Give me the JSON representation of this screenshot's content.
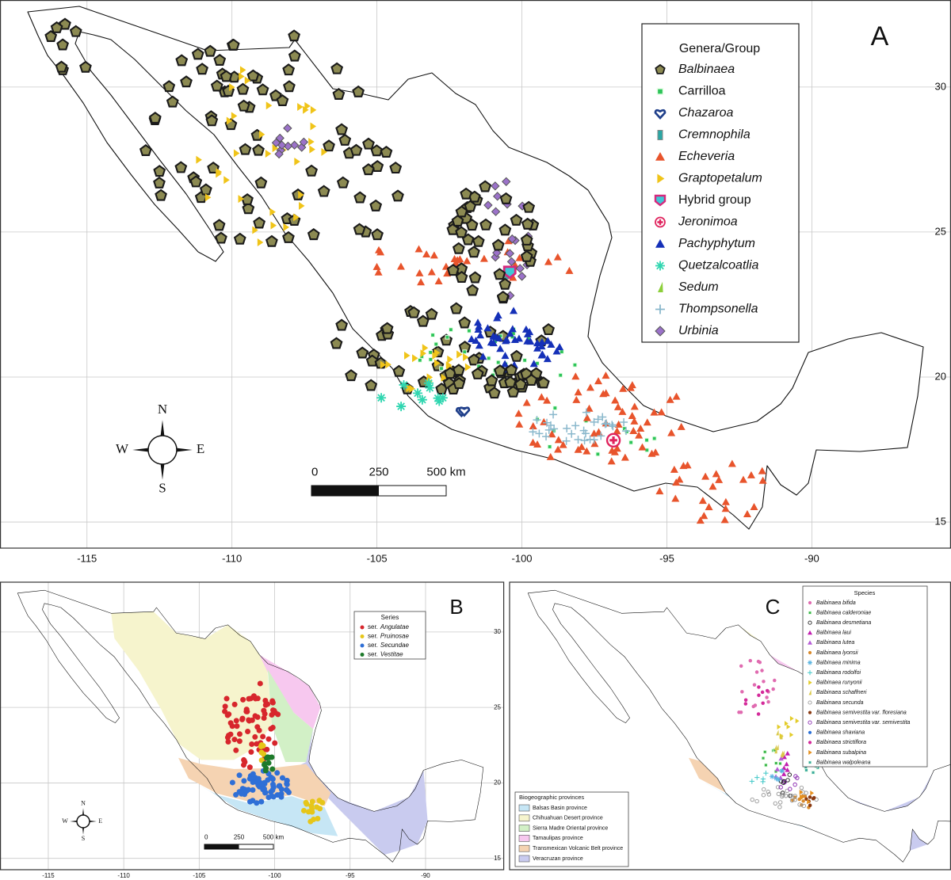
{
  "panels": [
    {
      "label": "A",
      "xlim": [
        -118,
        -85.2
      ],
      "ylim": [
        14.1,
        33.0
      ],
      "xticks": [
        -115,
        -110,
        -105,
        -100,
        -95,
        -90
      ],
      "yticks": [
        15,
        20,
        25,
        30
      ],
      "compass": {
        "n": "N",
        "e": "E",
        "s": "S",
        "w": "W"
      },
      "scale_bar": [
        "0",
        "250",
        "500 km"
      ],
      "legend": {
        "title": "Genera/Group",
        "entries": [
          {
            "name": "Balbinaea",
            "italic": true,
            "color": "#8c8a52",
            "marker": "pentagon"
          },
          {
            "name": "Carrilloa",
            "italic": false,
            "color": "#2ec45a",
            "marker": "square"
          },
          {
            "name": "Chazaroa",
            "italic": true,
            "color": "#1f3f8a",
            "marker": "heart"
          },
          {
            "name": "Cremnophila",
            "italic": true,
            "color": "#2aa7a5",
            "marker": "rect"
          },
          {
            "name": "Echeveria",
            "italic": true,
            "color": "#e8542c",
            "marker": "triangle"
          },
          {
            "name": "Graptopetalum",
            "italic": true,
            "color": "#f0c419",
            "marker": "flag"
          },
          {
            "name": "Hybrid group",
            "italic": false,
            "color": "#d6297d",
            "marker": "shield"
          },
          {
            "name": "Jeronimoa",
            "italic": true,
            "color": "#e0245e",
            "marker": "cross"
          },
          {
            "name": "Pachyphytum",
            "italic": true,
            "color": "#1530b8",
            "marker": "triangle"
          },
          {
            "name": "Quetzalcoatlia",
            "italic": true,
            "color": "#2fd6b0",
            "marker": "asterisk"
          },
          {
            "name": "Sedum",
            "italic": true,
            "color": "#8ccf3a",
            "marker": "sliver"
          },
          {
            "name": "Thompsonella",
            "italic": true,
            "color": "#8ab8cc",
            "marker": "plus"
          },
          {
            "name": "Urbinia",
            "italic": true,
            "color": "#9b72c9",
            "marker": "diamond"
          }
        ]
      }
    },
    {
      "label": "B",
      "xlim": [
        -118.2,
        -84.8
      ],
      "ylim": [
        14.25,
        33.3
      ],
      "xticks": [
        -115,
        -110,
        -105,
        -100,
        -95,
        -90
      ],
      "yticks": [
        15,
        20,
        25,
        30
      ],
      "compass": {
        "n": "N",
        "e": "E",
        "s": "S",
        "w": "W"
      },
      "scale_bar": [
        "0",
        "250",
        "500 km"
      ],
      "legend": {
        "title": "Series",
        "entries": [
          {
            "prefix": "ser.",
            "name": "Angulatae",
            "color": "#d7262c"
          },
          {
            "prefix": "ser.",
            "name": "Pruinosae",
            "color": "#e6c619"
          },
          {
            "prefix": "ser.",
            "name": "Secundae",
            "color": "#2f6fd6"
          },
          {
            "prefix": "ser.",
            "name": "Vestitae",
            "color": "#1d7a2a"
          }
        ]
      }
    },
    {
      "label": "C",
      "species_legend": {
        "title": "Species",
        "entries": [
          {
            "name": "Balbinaea bifida",
            "color": "#e06bb0",
            "marker": "dot"
          },
          {
            "name": "Balbinaea calderoniae",
            "color": "#3bb54a",
            "marker": "square"
          },
          {
            "name": "Balbinaea desmetiana",
            "color": "#222222",
            "marker": "ring"
          },
          {
            "name": "Balbinaea laui",
            "color": "#c21fb0",
            "marker": "triangle"
          },
          {
            "name": "Balbinaea lutea",
            "color": "#b65bd6",
            "marker": "triangle"
          },
          {
            "name": "Balbinaea lyonsii",
            "color": "#d98a2b",
            "marker": "dot"
          },
          {
            "name": "Balbinaea minima",
            "color": "#5ab4e0",
            "marker": "asterisk"
          },
          {
            "name": "Balbinaea rodolfoi",
            "color": "#3fc7c7",
            "marker": "plus"
          },
          {
            "name": "Balbinaea runyonii",
            "color": "#e3cc2a",
            "marker": "flag"
          },
          {
            "name": "Balbinaea schaffneri",
            "color": "#d9c94a",
            "marker": "sliver"
          },
          {
            "name": "Balbinaea secunda",
            "color": "#9a9a9a",
            "marker": "ring"
          },
          {
            "name": "Balbinaea semivestita var. floresiana",
            "color": "#8a3a12",
            "marker": "dot"
          },
          {
            "name": "Balbinaea semivestita var. semivestita",
            "color": "#8a2bb0",
            "marker": "ring"
          },
          {
            "name": "Balbinaea shaviana",
            "color": "#2a6fd6",
            "marker": "dot"
          },
          {
            "name": "Balbinaea strictiflora",
            "color": "#d42a9a",
            "marker": "dot"
          },
          {
            "name": "Balbinaea subalpina",
            "color": "#e6911f",
            "marker": "flag"
          },
          {
            "name": "Balbinaea walpoleana",
            "color": "#3aa8a0",
            "marker": "square"
          }
        ]
      },
      "province_legend": {
        "title": "Biogeographic provinces",
        "entries": [
          {
            "name": "Balsas Basin province",
            "color": "#c6e6f5"
          },
          {
            "name": "Chihuahuan Desert province",
            "color": "#f6f4cd"
          },
          {
            "name": "Sierra Madre Oriental province",
            "color": "#d2f0c6"
          },
          {
            "name": "Tamaulipas province",
            "color": "#f7c8ef"
          },
          {
            "name": "Transmexican Volcanic Belt province",
            "color": "#f5d3b2"
          },
          {
            "name": "Veracruzan province",
            "color": "#c9cbef"
          }
        ]
      }
    }
  ]
}
